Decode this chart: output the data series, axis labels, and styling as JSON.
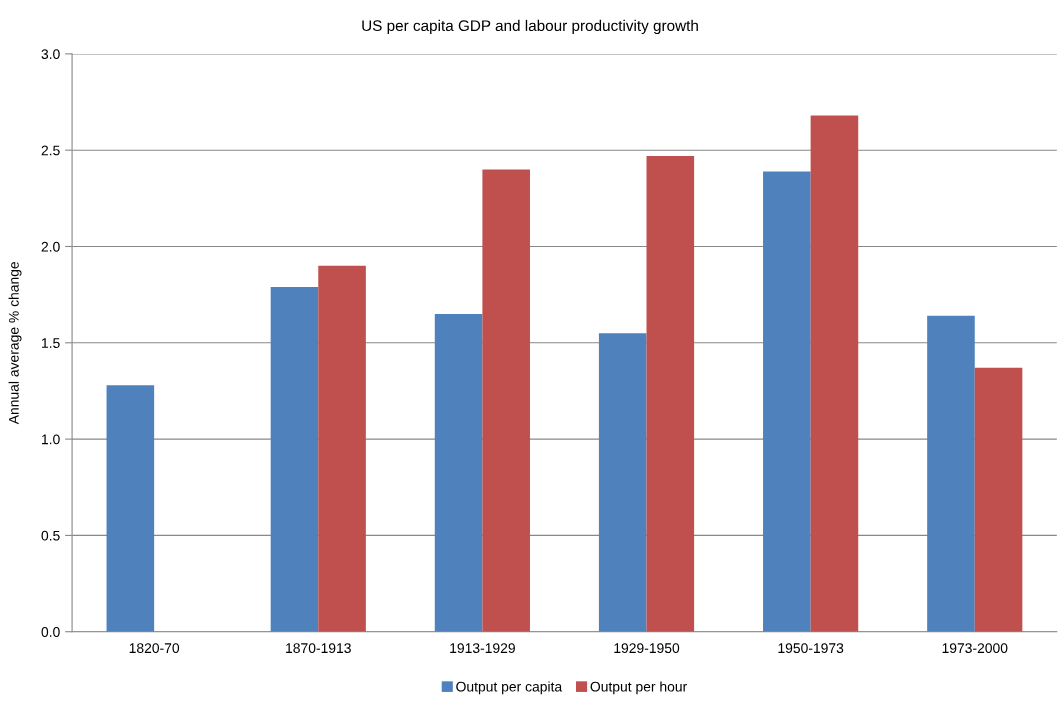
{
  "chart_data": {
    "type": "bar",
    "title": "US per capita GDP and labour productivity growth",
    "ylabel": "Annual average % change",
    "categories": [
      "1820-70",
      "1870-1913",
      "1913-1929",
      "1929-1950",
      "1950-1973",
      "1973-2000"
    ],
    "series": [
      {
        "name": "Output per capita",
        "color": "#4f81bd",
        "values": [
          1.28,
          1.79,
          1.65,
          1.55,
          2.39,
          1.64
        ]
      },
      {
        "name": "Output per hour",
        "color": "#c0504d",
        "values": [
          null,
          1.9,
          2.4,
          2.47,
          2.68,
          1.37
        ]
      }
    ],
    "ylim": [
      0,
      3.0
    ],
    "yticks": [
      {
        "value": 0,
        "label": "0.0"
      },
      {
        "value": 0.5,
        "label": "0.5"
      },
      {
        "value": 1.0,
        "label": "1.0"
      },
      {
        "value": 1.5,
        "label": "1.5"
      },
      {
        "value": 2.0,
        "label": "2.0"
      },
      {
        "value": 2.5,
        "label": "2.5"
      },
      {
        "value": 3.0,
        "label": "3.0"
      }
    ],
    "grid": "y",
    "legend": "bottom"
  }
}
